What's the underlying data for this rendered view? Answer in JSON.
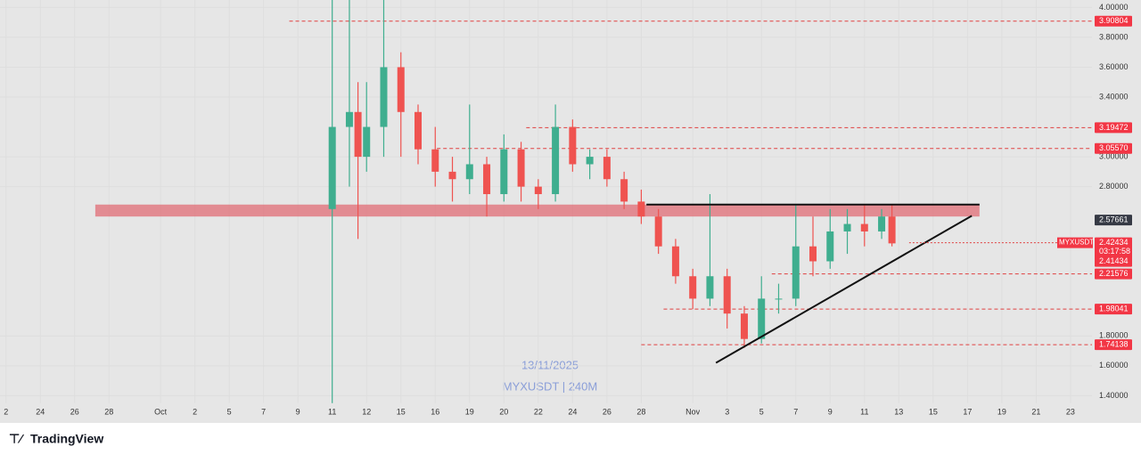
{
  "chart_data": {
    "type": "candlestick",
    "watermark": [
      "13/11/2025",
      "MYXUSDT | 240M"
    ],
    "brand": "TradingView",
    "up_color": "#3fae8f",
    "down_color": "#ef5350",
    "xlim": [
      -9.35,
      54.25
    ],
    "ylim": [
      1.35,
      4.05
    ],
    "xticks": [
      {
        "value": -9,
        "label": "2"
      },
      {
        "value": -7,
        "label": "24"
      },
      {
        "value": -5,
        "label": "26"
      },
      {
        "value": -3,
        "label": "28"
      },
      {
        "value": 0,
        "label": "Oct"
      },
      2,
      {
        "value": 4,
        "label": "5"
      },
      {
        "value": 6,
        "label": "7"
      },
      {
        "value": 8,
        "label": "9"
      },
      {
        "value": 10,
        "label": "11"
      },
      12,
      {
        "value": 14,
        "label": "15"
      },
      16,
      {
        "value": 18,
        "label": "19"
      },
      20,
      22,
      24,
      26,
      28,
      {
        "value": 31,
        "label": "Nov"
      },
      {
        "value": 33,
        "label": "3"
      },
      {
        "value": 35,
        "label": "5"
      },
      {
        "value": 37,
        "label": "7"
      },
      {
        "value": 39,
        "label": "9"
      },
      {
        "value": 41,
        "label": "11"
      },
      {
        "value": 43,
        "label": "13"
      },
      {
        "value": 45,
        "label": "15"
      },
      {
        "value": 47,
        "label": "17"
      },
      {
        "value": 49,
        "label": "19"
      },
      {
        "value": 51,
        "label": "21"
      },
      {
        "value": 53,
        "label": "23"
      }
    ],
    "yticks": [
      {
        "value": 4.0,
        "label": "4.00000"
      },
      {
        "value": 3.8,
        "label": "3.80000"
      },
      {
        "value": 3.6,
        "label": "3.60000"
      },
      {
        "value": 3.4,
        "label": "3.40000"
      },
      {
        "value": 3.0,
        "label": "3.00000"
      },
      {
        "value": 2.8,
        "label": "2.80000"
      },
      {
        "value": 1.8,
        "label": "1.80000"
      },
      {
        "value": 1.6,
        "label": "1.60000"
      },
      {
        "value": 1.4,
        "label": "1.40000"
      }
    ],
    "x": [
      10,
      11,
      11.5,
      12,
      13,
      14,
      15,
      16,
      17,
      18,
      19,
      20,
      21,
      22,
      23,
      24,
      25,
      26,
      27,
      28,
      29,
      30,
      31,
      32,
      33,
      34,
      35,
      36,
      37,
      38,
      39,
      40,
      41,
      42,
      42.6
    ],
    "open": [
      2.65,
      3.2,
      3.3,
      3.0,
      3.2,
      3.6,
      3.3,
      3.05,
      2.9,
      2.85,
      2.95,
      2.75,
      3.05,
      2.8,
      2.75,
      3.2,
      2.95,
      3.0,
      2.85,
      2.7,
      2.6,
      2.4,
      2.2,
      2.05,
      2.2,
      1.95,
      1.78,
      2.05,
      2.05,
      2.4,
      2.3,
      2.5,
      2.55,
      2.5,
      2.6
    ],
    "high": [
      4.05,
      4.05,
      3.5,
      3.5,
      4.1,
      3.7,
      3.35,
      3.2,
      3.0,
      3.35,
      3.0,
      3.15,
      3.1,
      2.85,
      3.35,
      3.25,
      3.05,
      3.05,
      2.9,
      2.78,
      2.65,
      2.45,
      2.25,
      2.75,
      2.25,
      2.0,
      2.2,
      2.15,
      2.68,
      2.6,
      2.65,
      2.65,
      2.68,
      2.65,
      2.68
    ],
    "low": [
      1.35,
      2.8,
      2.45,
      2.9,
      3.0,
      3.0,
      2.95,
      2.8,
      2.7,
      2.75,
      2.6,
      2.7,
      2.7,
      2.65,
      2.7,
      2.9,
      2.85,
      2.8,
      2.65,
      2.55,
      2.35,
      2.15,
      1.98,
      2.0,
      1.85,
      1.72,
      1.75,
      1.95,
      2.0,
      2.2,
      2.25,
      2.35,
      2.4,
      2.45,
      2.4
    ],
    "close": [
      3.2,
      3.3,
      3.0,
      3.2,
      3.6,
      3.3,
      3.05,
      2.9,
      2.85,
      2.95,
      2.75,
      3.05,
      2.8,
      2.75,
      3.2,
      2.95,
      3.0,
      2.85,
      2.7,
      2.6,
      2.4,
      2.2,
      2.05,
      2.2,
      1.95,
      1.78,
      2.05,
      2.05,
      2.4,
      2.3,
      2.5,
      2.55,
      2.5,
      2.6,
      2.42
    ],
    "zone": {
      "low": 2.6,
      "high": 2.68,
      "from": -3.8,
      "to": 47.7,
      "color": "#e06c75"
    },
    "trendlines": [
      {
        "x": [
          28.3,
          47.7
        ],
        "y": [
          2.68,
          2.68
        ]
      },
      {
        "x": [
          32.35,
          47.25
        ],
        "y": [
          1.62,
          2.605
        ]
      }
    ],
    "levels": [
      {
        "price": 3.90804,
        "from": 7.5
      },
      {
        "price": 3.19472,
        "from": 21.3
      },
      {
        "price": 3.0557,
        "label": "3.05570",
        "from": 16.1
      },
      {
        "price": 2.57661
      },
      {
        "price": 2.21576,
        "from": 35.6
      },
      {
        "price": 1.98041,
        "from": 29.3
      },
      {
        "price": 1.74138,
        "from": 28.0
      }
    ],
    "current": {
      "name": "MYXUSDT",
      "price": 2.42434,
      "countdown": "03:17:58",
      "from": 43.6,
      "prev": 2.41434
    }
  }
}
